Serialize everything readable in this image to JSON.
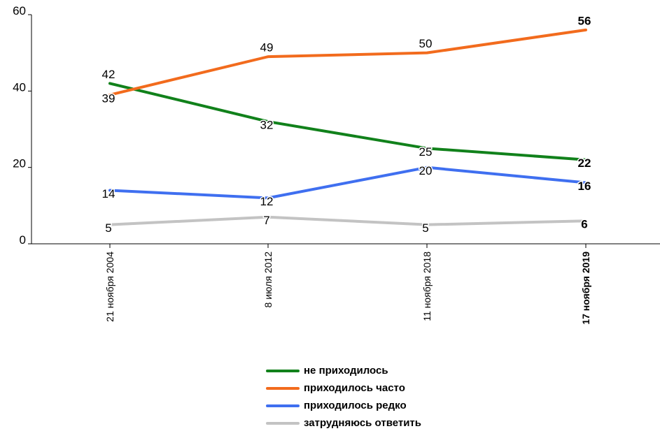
{
  "chart_data": {
    "type": "line",
    "categories": [
      "21 ноября 2004",
      "8 июля 2012",
      "11 ноября 2018",
      "17 ноября 2019"
    ],
    "bold_category": 3,
    "ylim": [
      0,
      60
    ],
    "yticks": [
      0,
      20,
      40,
      60
    ],
    "ytick_labels": [
      "0",
      "20",
      "40",
      "60"
    ],
    "grid": false,
    "legend_position": "bottom-center",
    "series": [
      {
        "name": "не приходилось",
        "color": "#11811b",
        "values": [
          42,
          32,
          25,
          22
        ],
        "labels": [
          "42",
          "32",
          "25",
          "22"
        ]
      },
      {
        "name": "приходилось часто",
        "color": "#f26b1d",
        "values": [
          39,
          49,
          50,
          56
        ],
        "labels": [
          "39",
          "49",
          "50",
          "56"
        ]
      },
      {
        "name": "приходилось редко",
        "color": "#3f6ff0",
        "values": [
          14,
          12,
          20,
          16
        ],
        "labels": [
          "14",
          "12",
          "20",
          "16"
        ]
      },
      {
        "name": "затрудняюсь ответить",
        "color": "#c3c3c3",
        "values": [
          5,
          7,
          5,
          6
        ],
        "labels": [
          "5",
          "7",
          "5",
          "6"
        ]
      }
    ]
  }
}
